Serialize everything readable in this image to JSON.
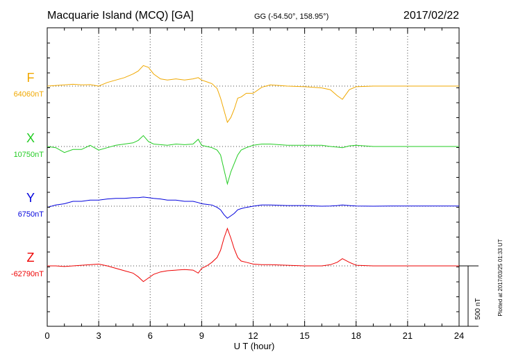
{
  "header": {
    "station": "Macquarie Island (MCQ)  [GA]",
    "coords": "GG (-54.50°, 158.95°)",
    "date": "2017/02/22"
  },
  "footer": {
    "plotted": "Plotted at 2017/03/25 01:33 UT",
    "scale_label": "500 nT"
  },
  "chart_data": {
    "type": "line",
    "title": "Macquarie Island (MCQ)  [GA]",
    "xlabel": "U T (hour)",
    "ylabel": "",
    "xlim": [
      0,
      24
    ],
    "x_ticks": [
      "0",
      "3",
      "6",
      "9",
      "12",
      "15",
      "18",
      "21",
      "24"
    ],
    "scale_bar_nT": 500,
    "grid": true,
    "series": [
      {
        "name": "F",
        "baseline_label": "64060nT",
        "baseline_nT": 64060,
        "color": "#f0a800",
        "x": [
          0,
          0.5,
          1,
          1.5,
          2,
          2.5,
          3,
          3.5,
          4,
          4.5,
          5,
          5.3,
          5.6,
          5.9,
          6.2,
          6.6,
          7,
          7.5,
          8,
          8.5,
          8.8,
          9,
          9.3,
          9.6,
          9.9,
          10.1,
          10.3,
          10.5,
          10.7,
          10.9,
          11.1,
          11.3,
          11.6,
          12,
          12.5,
          13,
          14,
          15,
          16,
          16.5,
          16.9,
          17.2,
          17.6,
          18,
          19,
          20,
          21,
          22,
          23,
          24
        ],
        "y": [
          64060,
          64065,
          64070,
          64075,
          64070,
          64072,
          64060,
          64090,
          64110,
          64130,
          64160,
          64185,
          64230,
          64215,
          64160,
          64120,
          64110,
          64120,
          64110,
          64120,
          64130,
          64110,
          64095,
          64080,
          64040,
          63960,
          63860,
          63760,
          63800,
          63870,
          63960,
          63970,
          64000,
          64000,
          64050,
          64070,
          64060,
          64055,
          64045,
          64030,
          63980,
          63950,
          64030,
          64055,
          64060,
          64060,
          64060,
          64060,
          64060,
          64060
        ]
      },
      {
        "name": "X",
        "baseline_label": "10750nT",
        "baseline_nT": 10750,
        "color": "#22cc22",
        "x": [
          0,
          0.5,
          1,
          1.5,
          2,
          2.5,
          3,
          3.5,
          4,
          4.5,
          5,
          5.3,
          5.6,
          5.9,
          6.2,
          6.6,
          7,
          7.5,
          8,
          8.5,
          8.8,
          9,
          9.3,
          9.6,
          9.9,
          10.1,
          10.3,
          10.5,
          10.7,
          10.9,
          11.1,
          11.3,
          11.6,
          12,
          12.5,
          13,
          14,
          15,
          16,
          16.5,
          16.9,
          17.2,
          17.6,
          18,
          19,
          20,
          21,
          22,
          23,
          24
        ],
        "y": [
          10750,
          10740,
          10700,
          10725,
          10725,
          10760,
          10720,
          10740,
          10760,
          10770,
          10780,
          10800,
          10840,
          10790,
          10770,
          10765,
          10760,
          10770,
          10765,
          10770,
          10810,
          10760,
          10750,
          10740,
          10720,
          10680,
          10560,
          10440,
          10540,
          10610,
          10680,
          10720,
          10740,
          10760,
          10770,
          10770,
          10760,
          10760,
          10760,
          10750,
          10745,
          10740,
          10755,
          10760,
          10750,
          10750,
          10750,
          10750,
          10750,
          10750
        ]
      },
      {
        "name": "Y",
        "baseline_label": "6750nT",
        "baseline_nT": 6750,
        "color": "#0000dd",
        "x": [
          0,
          0.5,
          1,
          1.5,
          2,
          2.5,
          3,
          3.5,
          4,
          4.5,
          5,
          5.3,
          5.6,
          5.9,
          6.2,
          6.6,
          7,
          7.5,
          8,
          8.5,
          8.8,
          9,
          9.3,
          9.6,
          9.9,
          10.1,
          10.3,
          10.5,
          10.7,
          10.9,
          11.1,
          11.3,
          11.6,
          12,
          12.5,
          13,
          14,
          15,
          16,
          16.5,
          16.9,
          17.2,
          17.6,
          18,
          19,
          20,
          21,
          22,
          23,
          24
        ],
        "y": [
          6740,
          6760,
          6770,
          6790,
          6790,
          6800,
          6800,
          6810,
          6815,
          6815,
          6820,
          6820,
          6825,
          6820,
          6815,
          6810,
          6800,
          6800,
          6790,
          6790,
          6780,
          6770,
          6765,
          6760,
          6740,
          6720,
          6680,
          6650,
          6670,
          6690,
          6720,
          6730,
          6740,
          6750,
          6760,
          6760,
          6755,
          6755,
          6750,
          6752,
          6755,
          6760,
          6755,
          6752,
          6750,
          6752,
          6752,
          6752,
          6752,
          6752
        ]
      },
      {
        "name": "Z",
        "baseline_label": "-62790nT",
        "baseline_nT": -62790,
        "color": "#ee0000",
        "x": [
          0,
          0.5,
          1,
          1.5,
          2,
          2.5,
          3,
          3.5,
          4,
          4.5,
          5,
          5.3,
          5.6,
          5.9,
          6.2,
          6.6,
          7,
          7.5,
          8,
          8.5,
          8.8,
          9,
          9.3,
          9.6,
          9.9,
          10.1,
          10.3,
          10.5,
          10.7,
          10.9,
          11.1,
          11.3,
          11.6,
          12,
          12.5,
          13,
          14,
          15,
          16,
          16.5,
          16.9,
          17.2,
          17.6,
          18,
          19,
          20,
          21,
          22,
          23,
          24
        ],
        "y": [
          -62790,
          -62790,
          -62795,
          -62790,
          -62785,
          -62780,
          -62775,
          -62790,
          -62810,
          -62830,
          -62850,
          -62880,
          -62920,
          -62890,
          -62860,
          -62840,
          -62830,
          -62825,
          -62820,
          -62825,
          -62850,
          -62810,
          -62790,
          -62760,
          -62720,
          -62660,
          -62560,
          -62480,
          -62560,
          -62650,
          -62720,
          -62750,
          -62760,
          -62775,
          -62780,
          -62780,
          -62785,
          -62790,
          -62790,
          -62780,
          -62760,
          -62730,
          -62760,
          -62785,
          -62790,
          -62790,
          -62790,
          -62790,
          -62790,
          -62790
        ]
      }
    ]
  }
}
